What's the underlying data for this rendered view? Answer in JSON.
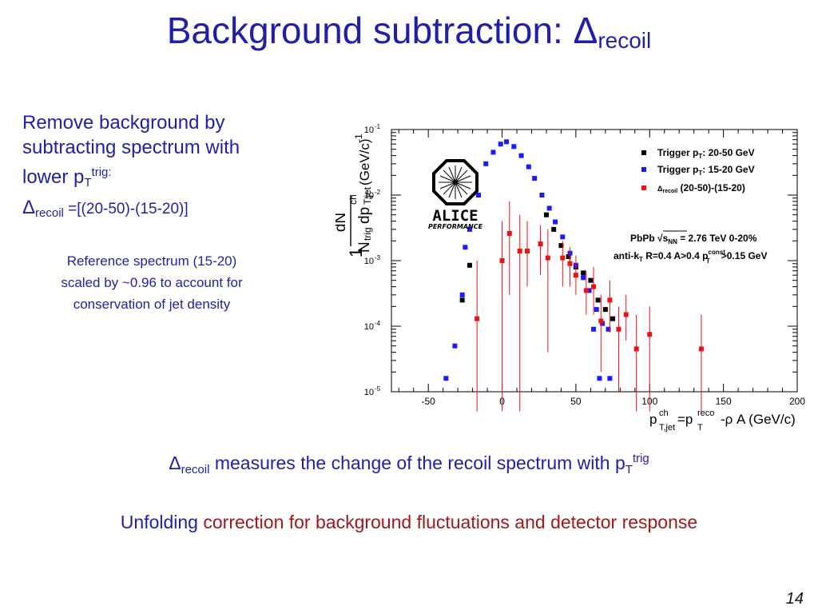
{
  "slide": {
    "title_main": "Background subtraction: Δ",
    "title_sub": "recoil",
    "left_line1": "Remove background by",
    "left_line2": "subtracting spectrum with",
    "left_line3_text": "lower p",
    "left_line3_sub": "T",
    "left_line3_sup": "trig:",
    "left_line4_delta": "Δ",
    "left_line4_sub": "recoil",
    "left_line4_rest": " =[(20-50)-(15-20)]",
    "ref_line1": "Reference spectrum (15-20)",
    "ref_line2": "scaled by ~0.96 to account for",
    "ref_line3": "conservation of jet density",
    "bottom1_delta": "Δ",
    "bottom1_sub": "recoil",
    "bottom1_text": " measures the change of the recoil spectrum with p",
    "bottom1_sub2": "T",
    "bottom1_sup": "trig",
    "bottom2_blue": "Unfolding ",
    "bottom2_red": "correction for background fluctuations and detector response",
    "page_number": "14"
  },
  "chart_data": {
    "type": "scatter",
    "y_scale": "log",
    "xlim": [
      -75,
      200
    ],
    "ylim": [
      1e-05,
      0.1
    ],
    "x_ticks": [
      -50,
      0,
      50,
      100,
      150,
      200
    ],
    "y_ticks": [
      {
        "base": "10",
        "exp": "-1",
        "value": 0.1
      },
      {
        "base": "10",
        "exp": "-2",
        "value": 0.01
      },
      {
        "base": "10",
        "exp": "-3",
        "value": 0.001
      },
      {
        "base": "10",
        "exp": "-4",
        "value": 0.0001
      },
      {
        "base": "10",
        "exp": "-5",
        "value": 1e-05
      }
    ],
    "ylabel": {
      "one": "1",
      "dN": "dN",
      "Ntrig": "N",
      "trig": "trig",
      "dp": "dp",
      "ch": "ch",
      "Tjet": "T,jet",
      "unit": "(GeV/c)",
      "unit_exp": "-1"
    },
    "xlabel": {
      "p": "p",
      "ch": "ch",
      "tjet": "T,jet",
      "eq": "=p",
      "reco": "reco",
      "T": "T",
      "rest": "-ρ A (GeV/c)"
    },
    "legend_placement": "top-right",
    "legend": [
      {
        "marker_color": "#000000",
        "text": "Trigger p",
        "sub": "T",
        "rest": ": 20-50 GeV"
      },
      {
        "marker_color": "#1a1aff",
        "text": "Trigger p",
        "sub": "T",
        "rest": ": 15-20 GeV"
      },
      {
        "marker_color": "#ee1111",
        "text": "Δ",
        "sub": "recoil",
        "rest": " (20-50)-(15-20)"
      }
    ],
    "annotation1": {
      "a": "PbPb ",
      "sqrt": "√",
      "s": "s",
      "sub": "NN",
      "rest": " = 2.76 TeV 0-20%"
    },
    "annotation2": {
      "a": "anti-k",
      "sub": "T",
      "b": " R=0.4 A>0.4 p",
      "sup2": "const",
      "sub2": "T",
      "c": ">0.15 GeV"
    },
    "logo": {
      "name": "ALICE",
      "sub": "PERFORMANCE"
    },
    "series": [
      {
        "name": "Trigger pT: 20-50 GeV",
        "color": "#000000",
        "points": [
          [
            -22,
            0.00085
          ],
          [
            -27,
            0.00025
          ],
          [
            30,
            0.005
          ],
          [
            35,
            0.003
          ],
          [
            40,
            0.0017
          ],
          [
            45,
            0.00115
          ],
          [
            50,
            0.0008
          ],
          [
            55,
            0.00065
          ],
          [
            60,
            0.0005
          ],
          [
            65,
            0.00025
          ],
          [
            70,
            0.00018
          ],
          [
            75,
            0.00013
          ]
        ]
      },
      {
        "name": "Trigger pT: 15-20 GeV",
        "color": "#1a1aff",
        "points": [
          [
            -38,
            1.6e-05
          ],
          [
            -32,
            5e-05
          ],
          [
            -27,
            0.0003
          ],
          [
            -25,
            0.0016
          ],
          [
            -22,
            0.003
          ],
          [
            -16,
            0.01
          ],
          [
            -11,
            0.03
          ],
          [
            -6,
            0.045
          ],
          [
            -1,
            0.06
          ],
          [
            3,
            0.065
          ],
          [
            8,
            0.055
          ],
          [
            13,
            0.04
          ],
          [
            18,
            0.027
          ],
          [
            22,
            0.018
          ],
          [
            27,
            0.01
          ],
          [
            32,
            0.0063
          ],
          [
            36,
            0.0039
          ],
          [
            41,
            0.0023
          ],
          [
            46,
            0.0013
          ],
          [
            50,
            0.00085
          ],
          [
            55,
            0.00055
          ],
          [
            59,
            0.00035
          ],
          [
            64,
            0.00018
          ],
          [
            68,
            0.00011
          ],
          [
            72,
            9e-05
          ],
          [
            62,
            9e-05
          ],
          [
            66,
            1.6e-05
          ],
          [
            73,
            1.6e-05
          ]
        ]
      },
      {
        "name": "Δrecoil (20-50)-(15-20)",
        "color": "#ee1111",
        "points": [
          [
            -17,
            0.00013,
            5e-06,
            0.001
          ],
          [
            0,
            0.001,
            5e-06,
            0.004
          ],
          [
            5,
            0.0026,
            0.0003,
            0.008
          ],
          [
            12,
            0.0014,
            5e-06,
            0.005
          ],
          [
            17,
            0.0014,
            0.0004,
            0.004
          ],
          [
            26,
            0.0018,
            0.0006,
            0.0035
          ],
          [
            31,
            0.0011,
            4e-05,
            0.003
          ],
          [
            41,
            0.0011,
            0.0004,
            0.002
          ],
          [
            46,
            0.0009,
            0.0004,
            0.0016
          ],
          [
            50,
            0.0006,
            0.0003,
            0.0012
          ],
          [
            57,
            0.00035,
            0.00015,
            0.0007
          ],
          [
            62,
            0.0004,
            0.00015,
            0.0008
          ],
          [
            67,
            0.00012,
            2e-05,
            0.0003
          ],
          [
            73,
            0.00025,
            8e-05,
            0.0005
          ],
          [
            79,
            9e-05,
            1e-05,
            0.0002
          ],
          [
            84,
            0.00015,
            6e-05,
            0.0003
          ],
          [
            91,
            4.5e-05,
            5e-06,
            0.00015
          ],
          [
            100,
            7.5e-05,
            5e-06,
            0.0002
          ],
          [
            135,
            4.5e-05,
            5e-06,
            0.00015
          ]
        ]
      }
    ]
  }
}
